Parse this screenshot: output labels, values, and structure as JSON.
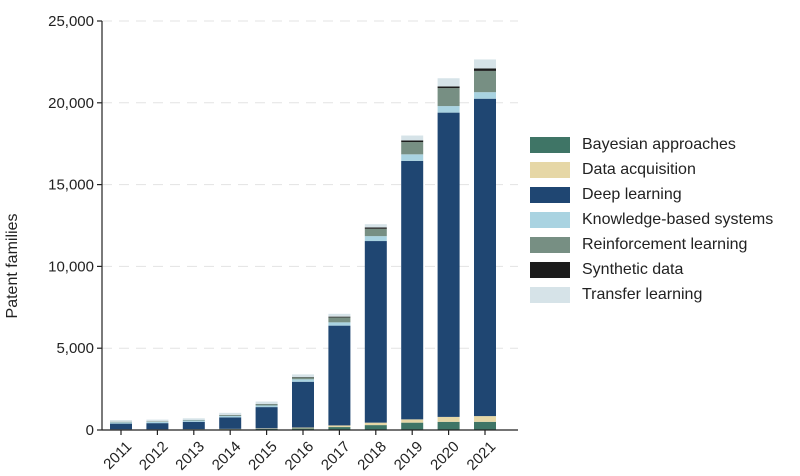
{
  "chart_data": {
    "type": "bar",
    "stacked": true,
    "title": "",
    "xlabel": "",
    "ylabel": "Patent families",
    "ylim": [
      0,
      25000
    ],
    "yticks": [
      0,
      5000,
      10000,
      15000,
      20000,
      25000
    ],
    "ytick_labels": [
      "0",
      "5,000",
      "10,000",
      "15,000",
      "20,000",
      "25,000"
    ],
    "grid": "horizontal dashed",
    "legend_position": "right",
    "categories": [
      "2011",
      "2012",
      "2013",
      "2014",
      "2015",
      "2016",
      "2017",
      "2018",
      "2019",
      "2020",
      "2021"
    ],
    "series": [
      {
        "name": "Bayesian approaches",
        "color": "#3f7566",
        "values": [
          30,
          30,
          40,
          50,
          70,
          100,
          180,
          300,
          450,
          500,
          500
        ]
      },
      {
        "name": "Data acquisition",
        "color": "#e6d7a6",
        "values": [
          10,
          10,
          10,
          20,
          30,
          50,
          100,
          150,
          200,
          300,
          350
        ]
      },
      {
        "name": "Deep learning",
        "color": "#1f4672",
        "values": [
          350,
          380,
          450,
          700,
          1300,
          2800,
          6100,
          11100,
          15800,
          18600,
          19400
        ]
      },
      {
        "name": "Knowledge-based systems",
        "color": "#a9d3e1",
        "values": [
          80,
          80,
          80,
          90,
          100,
          150,
          200,
          300,
          400,
          400,
          400
        ]
      },
      {
        "name": "Reinforcement learning",
        "color": "#778f83",
        "values": [
          30,
          30,
          30,
          50,
          80,
          120,
          300,
          450,
          750,
          1100,
          1300
        ]
      },
      {
        "name": "Synthetic data",
        "color": "#1c1c1c",
        "values": [
          5,
          5,
          5,
          10,
          10,
          20,
          50,
          80,
          100,
          100,
          150
        ]
      },
      {
        "name": "Transfer learning",
        "color": "#d6e3e8",
        "values": [
          100,
          100,
          100,
          130,
          150,
          160,
          170,
          200,
          300,
          500,
          550
        ]
      }
    ]
  }
}
